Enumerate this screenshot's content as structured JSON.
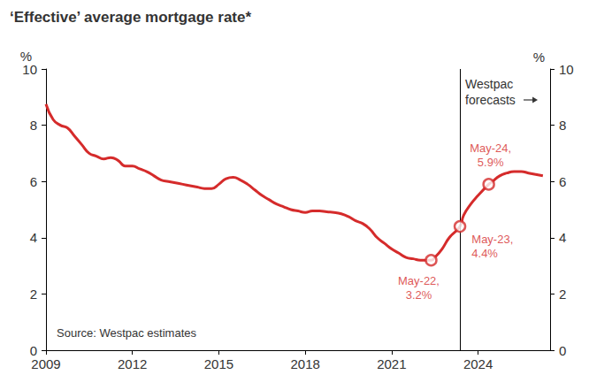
{
  "chart_data": {
    "type": "line",
    "title": "‘Effective’ average mortgage rate*",
    "y_label": "%",
    "y2_label": "%",
    "source": "Source: Westpac estimates",
    "color": "#d52b2b",
    "grid": false,
    "x": [
      2009.0,
      2009.25,
      2009.5,
      2009.75,
      2010.0,
      2010.25,
      2010.5,
      2010.75,
      2011.0,
      2011.25,
      2011.5,
      2011.75,
      2012.0,
      2012.25,
      2012.5,
      2012.75,
      2013.0,
      2013.25,
      2013.5,
      2013.75,
      2014.0,
      2014.25,
      2014.5,
      2014.75,
      2015.0,
      2015.25,
      2015.5,
      2015.75,
      2016.0,
      2016.25,
      2016.5,
      2016.75,
      2017.0,
      2017.25,
      2017.5,
      2017.75,
      2018.0,
      2018.25,
      2018.5,
      2018.75,
      2019.0,
      2019.25,
      2019.5,
      2019.75,
      2020.0,
      2020.25,
      2020.5,
      2020.75,
      2021.0,
      2021.25,
      2021.5,
      2021.75,
      2022.0,
      2022.37,
      2022.5,
      2022.75,
      2023.0,
      2023.37,
      2023.5,
      2023.75,
      2024.0,
      2024.37,
      2024.5,
      2024.75,
      2025.0,
      2025.25,
      2025.5,
      2025.75,
      2026.0,
      2026.25
    ],
    "values": [
      8.75,
      8.2,
      8.0,
      7.9,
      7.6,
      7.3,
      7.0,
      6.9,
      6.8,
      6.85,
      6.75,
      6.55,
      6.55,
      6.45,
      6.35,
      6.2,
      6.05,
      6.0,
      5.95,
      5.9,
      5.85,
      5.8,
      5.75,
      5.75,
      5.9,
      6.1,
      6.15,
      6.05,
      5.9,
      5.7,
      5.5,
      5.35,
      5.2,
      5.1,
      5.0,
      4.95,
      4.9,
      4.95,
      4.95,
      4.92,
      4.9,
      4.85,
      4.75,
      4.6,
      4.5,
      4.3,
      4.0,
      3.8,
      3.6,
      3.45,
      3.3,
      3.25,
      3.2,
      3.2,
      3.3,
      3.6,
      4.0,
      4.4,
      4.8,
      5.2,
      5.5,
      5.9,
      6.0,
      6.2,
      6.3,
      6.35,
      6.35,
      6.3,
      6.25,
      6.2
    ],
    "xlim": [
      2009,
      2026.5
    ],
    "xticks": [
      2009,
      2012,
      2015,
      2018,
      2021,
      2024
    ],
    "ylim": [
      0,
      10
    ],
    "yticks": [
      0,
      2,
      4,
      6,
      8,
      10
    ],
    "y2lim": [
      0,
      10
    ],
    "y2ticks": [
      0,
      2,
      4,
      6,
      8,
      10
    ],
    "annotations": [
      {
        "x": 2022.37,
        "y": 3.2,
        "lines": [
          "May-22,",
          "3.2%"
        ],
        "marker": "circle"
      },
      {
        "x": 2023.37,
        "y": 4.4,
        "lines": [
          "May-23,",
          "4.4%"
        ],
        "marker": "circle"
      },
      {
        "x": 2024.37,
        "y": 5.9,
        "lines": [
          "May-24,",
          "5.9%"
        ],
        "marker": "circle"
      }
    ],
    "forecast_start": {
      "x": 2023.37,
      "lines": [
        "Westpac",
        "forecasts"
      ]
    }
  }
}
